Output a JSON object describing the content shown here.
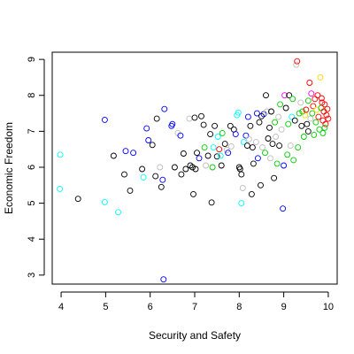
{
  "chart_data": {
    "type": "scatter",
    "title": "",
    "xlabel": "Security and Safety",
    "ylabel": "Economic Freedom",
    "xlim": [
      3.8,
      10.2
    ],
    "ylim": [
      2.75,
      9.2
    ],
    "x_ticks": [
      4,
      5,
      6,
      7,
      8,
      9,
      10
    ],
    "y_ticks": [
      3,
      4,
      5,
      6,
      7,
      8,
      9
    ],
    "grid": false,
    "legend": "none",
    "marker": "open-circle",
    "colors": {
      "black": "#000000",
      "red": "#ff0000",
      "green": "#00cd00",
      "blue": "#0000ff",
      "cyan": "#00ffff",
      "magenta": "#ff00ff",
      "yellow": "#ffd700",
      "gray": "#bebebe"
    },
    "points": [
      {
        "x": 3.98,
        "y": 6.35,
        "color": "cyan"
      },
      {
        "x": 3.97,
        "y": 5.4,
        "color": "cyan"
      },
      {
        "x": 4.38,
        "y": 5.12,
        "color": "black"
      },
      {
        "x": 4.98,
        "y": 7.32,
        "color": "blue"
      },
      {
        "x": 4.98,
        "y": 5.03,
        "color": "cyan"
      },
      {
        "x": 5.18,
        "y": 6.32,
        "color": "black"
      },
      {
        "x": 5.28,
        "y": 4.75,
        "color": "cyan"
      },
      {
        "x": 5.42,
        "y": 5.8,
        "color": "black"
      },
      {
        "x": 5.45,
        "y": 6.45,
        "color": "blue"
      },
      {
        "x": 5.55,
        "y": 5.35,
        "color": "black"
      },
      {
        "x": 5.62,
        "y": 6.4,
        "color": "blue"
      },
      {
        "x": 5.82,
        "y": 5.95,
        "color": "black"
      },
      {
        "x": 5.85,
        "y": 5.72,
        "color": "cyan"
      },
      {
        "x": 5.92,
        "y": 7.08,
        "color": "blue"
      },
      {
        "x": 5.96,
        "y": 6.75,
        "color": "blue"
      },
      {
        "x": 6.05,
        "y": 6.62,
        "color": "black"
      },
      {
        "x": 6.12,
        "y": 5.75,
        "color": "black"
      },
      {
        "x": 6.15,
        "y": 7.35,
        "color": "black"
      },
      {
        "x": 6.22,
        "y": 6.0,
        "color": "gray"
      },
      {
        "x": 6.25,
        "y": 5.45,
        "color": "black"
      },
      {
        "x": 6.28,
        "y": 5.65,
        "color": "blue"
      },
      {
        "x": 6.32,
        "y": 7.62,
        "color": "blue"
      },
      {
        "x": 6.3,
        "y": 2.88,
        "color": "blue"
      },
      {
        "x": 6.48,
        "y": 7.15,
        "color": "blue"
      },
      {
        "x": 6.5,
        "y": 7.2,
        "color": "blue"
      },
      {
        "x": 6.55,
        "y": 6.0,
        "color": "black"
      },
      {
        "x": 6.62,
        "y": 6.95,
        "color": "gray"
      },
      {
        "x": 6.68,
        "y": 6.88,
        "color": "blue"
      },
      {
        "x": 6.7,
        "y": 5.8,
        "color": "black"
      },
      {
        "x": 6.75,
        "y": 6.38,
        "color": "black"
      },
      {
        "x": 6.8,
        "y": 5.95,
        "color": "black"
      },
      {
        "x": 6.88,
        "y": 7.35,
        "color": "gray"
      },
      {
        "x": 6.9,
        "y": 6.05,
        "color": "black"
      },
      {
        "x": 6.95,
        "y": 6.0,
        "color": "black"
      },
      {
        "x": 6.97,
        "y": 5.25,
        "color": "black"
      },
      {
        "x": 7.0,
        "y": 7.38,
        "color": "black"
      },
      {
        "x": 7.02,
        "y": 5.95,
        "color": "black"
      },
      {
        "x": 7.05,
        "y": 6.4,
        "color": "black"
      },
      {
        "x": 7.1,
        "y": 6.25,
        "color": "blue"
      },
      {
        "x": 7.15,
        "y": 7.42,
        "color": "black"
      },
      {
        "x": 7.2,
        "y": 7.18,
        "color": "black"
      },
      {
        "x": 7.22,
        "y": 6.55,
        "color": "green"
      },
      {
        "x": 7.25,
        "y": 6.05,
        "color": "gray"
      },
      {
        "x": 7.3,
        "y": 6.32,
        "color": "black"
      },
      {
        "x": 7.35,
        "y": 6.92,
        "color": "black"
      },
      {
        "x": 7.38,
        "y": 5.02,
        "color": "black"
      },
      {
        "x": 7.4,
        "y": 6.0,
        "color": "green"
      },
      {
        "x": 7.42,
        "y": 6.55,
        "color": "cyan"
      },
      {
        "x": 7.45,
        "y": 7.15,
        "color": "black"
      },
      {
        "x": 7.5,
        "y": 6.3,
        "color": "black"
      },
      {
        "x": 7.52,
        "y": 6.85,
        "color": "cyan"
      },
      {
        "x": 7.55,
        "y": 6.5,
        "color": "red"
      },
      {
        "x": 7.58,
        "y": 6.32,
        "color": "cyan"
      },
      {
        "x": 7.6,
        "y": 6.05,
        "color": "black"
      },
      {
        "x": 7.62,
        "y": 6.95,
        "color": "green"
      },
      {
        "x": 7.68,
        "y": 6.65,
        "color": "black"
      },
      {
        "x": 7.72,
        "y": 6.48,
        "color": "gray"
      },
      {
        "x": 7.75,
        "y": 6.4,
        "color": "blue"
      },
      {
        "x": 7.8,
        "y": 7.15,
        "color": "black"
      },
      {
        "x": 7.82,
        "y": 6.58,
        "color": "gray"
      },
      {
        "x": 7.88,
        "y": 7.05,
        "color": "black"
      },
      {
        "x": 7.92,
        "y": 6.92,
        "color": "blue"
      },
      {
        "x": 7.95,
        "y": 7.45,
        "color": "cyan"
      },
      {
        "x": 7.98,
        "y": 7.52,
        "color": "cyan"
      },
      {
        "x": 8.0,
        "y": 6.0,
        "color": "black"
      },
      {
        "x": 8.02,
        "y": 5.95,
        "color": "black"
      },
      {
        "x": 8.05,
        "y": 5.8,
        "color": "black"
      },
      {
        "x": 8.05,
        "y": 5.0,
        "color": "cyan"
      },
      {
        "x": 8.08,
        "y": 5.42,
        "color": "gray"
      },
      {
        "x": 8.1,
        "y": 6.7,
        "color": "cyan"
      },
      {
        "x": 8.15,
        "y": 6.88,
        "color": "blue"
      },
      {
        "x": 8.18,
        "y": 6.6,
        "color": "black"
      },
      {
        "x": 8.2,
        "y": 7.4,
        "color": "blue"
      },
      {
        "x": 8.22,
        "y": 6.78,
        "color": "gray"
      },
      {
        "x": 8.25,
        "y": 7.15,
        "color": "black"
      },
      {
        "x": 8.28,
        "y": 5.25,
        "color": "black"
      },
      {
        "x": 8.3,
        "y": 6.55,
        "color": "black"
      },
      {
        "x": 8.32,
        "y": 6.1,
        "color": "black"
      },
      {
        "x": 8.38,
        "y": 6.7,
        "color": "gray"
      },
      {
        "x": 8.4,
        "y": 7.5,
        "color": "blue"
      },
      {
        "x": 8.42,
        "y": 6.25,
        "color": "blue"
      },
      {
        "x": 8.45,
        "y": 7.25,
        "color": "black"
      },
      {
        "x": 8.48,
        "y": 5.5,
        "color": "black"
      },
      {
        "x": 8.5,
        "y": 7.42,
        "color": "black"
      },
      {
        "x": 8.52,
        "y": 6.55,
        "color": "gray"
      },
      {
        "x": 8.55,
        "y": 7.48,
        "color": "blue"
      },
      {
        "x": 8.58,
        "y": 6.4,
        "color": "green"
      },
      {
        "x": 8.6,
        "y": 8.0,
        "color": "black"
      },
      {
        "x": 8.62,
        "y": 7.55,
        "color": "gray"
      },
      {
        "x": 8.65,
        "y": 6.8,
        "color": "black"
      },
      {
        "x": 8.68,
        "y": 7.1,
        "color": "black"
      },
      {
        "x": 8.7,
        "y": 6.25,
        "color": "gray"
      },
      {
        "x": 8.72,
        "y": 7.55,
        "color": "black"
      },
      {
        "x": 8.75,
        "y": 6.65,
        "color": "black"
      },
      {
        "x": 8.78,
        "y": 5.7,
        "color": "black"
      },
      {
        "x": 8.8,
        "y": 7.25,
        "color": "green"
      },
      {
        "x": 8.82,
        "y": 6.85,
        "color": "gray"
      },
      {
        "x": 8.85,
        "y": 6.1,
        "color": "green"
      },
      {
        "x": 8.88,
        "y": 7.4,
        "color": "gray"
      },
      {
        "x": 8.9,
        "y": 6.6,
        "color": "black"
      },
      {
        "x": 8.92,
        "y": 7.75,
        "color": "green"
      },
      {
        "x": 8.95,
        "y": 7.05,
        "color": "gray"
      },
      {
        "x": 8.98,
        "y": 4.85,
        "color": "blue"
      },
      {
        "x": 9.0,
        "y": 6.05,
        "color": "blue"
      },
      {
        "x": 9.02,
        "y": 8.0,
        "color": "magenta"
      },
      {
        "x": 9.05,
        "y": 7.65,
        "color": "black"
      },
      {
        "x": 9.08,
        "y": 6.35,
        "color": "green"
      },
      {
        "x": 9.1,
        "y": 7.2,
        "color": "green"
      },
      {
        "x": 9.12,
        "y": 8.0,
        "color": "black"
      },
      {
        "x": 9.15,
        "y": 6.6,
        "color": "gray"
      },
      {
        "x": 9.18,
        "y": 7.4,
        "color": "cyan"
      },
      {
        "x": 9.2,
        "y": 7.9,
        "color": "green"
      },
      {
        "x": 9.22,
        "y": 6.2,
        "color": "green"
      },
      {
        "x": 9.25,
        "y": 7.3,
        "color": "black"
      },
      {
        "x": 9.28,
        "y": 8.85,
        "color": "gray"
      },
      {
        "x": 9.3,
        "y": 8.95,
        "color": "red"
      },
      {
        "x": 9.32,
        "y": 6.55,
        "color": "green"
      },
      {
        "x": 9.35,
        "y": 7.5,
        "color": "green"
      },
      {
        "x": 9.38,
        "y": 7.8,
        "color": "gray"
      },
      {
        "x": 9.4,
        "y": 7.15,
        "color": "black"
      },
      {
        "x": 9.42,
        "y": 7.55,
        "color": "green"
      },
      {
        "x": 9.45,
        "y": 6.85,
        "color": "green"
      },
      {
        "x": 9.48,
        "y": 7.45,
        "color": "yellow"
      },
      {
        "x": 9.5,
        "y": 7.6,
        "color": "red"
      },
      {
        "x": 9.52,
        "y": 7.2,
        "color": "black"
      },
      {
        "x": 9.55,
        "y": 7.85,
        "color": "green"
      },
      {
        "x": 9.58,
        "y": 8.35,
        "color": "red"
      },
      {
        "x": 9.6,
        "y": 7.35,
        "color": "gray"
      },
      {
        "x": 9.62,
        "y": 8.05,
        "color": "magenta"
      },
      {
        "x": 9.64,
        "y": 7.5,
        "color": "green"
      },
      {
        "x": 9.66,
        "y": 7.7,
        "color": "red"
      },
      {
        "x": 9.68,
        "y": 6.9,
        "color": "green"
      },
      {
        "x": 9.7,
        "y": 7.9,
        "color": "red"
      },
      {
        "x": 9.72,
        "y": 7.25,
        "color": "green"
      },
      {
        "x": 9.74,
        "y": 7.6,
        "color": "yellow"
      },
      {
        "x": 9.76,
        "y": 8.0,
        "color": "red"
      },
      {
        "x": 9.78,
        "y": 7.4,
        "color": "red"
      },
      {
        "x": 9.8,
        "y": 7.05,
        "color": "green"
      },
      {
        "x": 9.82,
        "y": 8.5,
        "color": "yellow"
      },
      {
        "x": 9.84,
        "y": 7.65,
        "color": "green"
      },
      {
        "x": 9.86,
        "y": 7.8,
        "color": "red"
      },
      {
        "x": 9.88,
        "y": 7.3,
        "color": "red"
      },
      {
        "x": 9.9,
        "y": 7.55,
        "color": "red"
      },
      {
        "x": 9.92,
        "y": 7.75,
        "color": "red"
      },
      {
        "x": 9.94,
        "y": 7.2,
        "color": "red"
      },
      {
        "x": 9.96,
        "y": 7.45,
        "color": "red"
      },
      {
        "x": 9.98,
        "y": 7.62,
        "color": "red"
      },
      {
        "x": 10.0,
        "y": 7.35,
        "color": "red"
      },
      {
        "x": 9.85,
        "y": 7.92,
        "color": "red"
      },
      {
        "x": 9.92,
        "y": 7.1,
        "color": "green"
      },
      {
        "x": 9.88,
        "y": 6.95,
        "color": "green"
      },
      {
        "x": 9.55,
        "y": 7.0,
        "color": "black"
      }
    ]
  }
}
